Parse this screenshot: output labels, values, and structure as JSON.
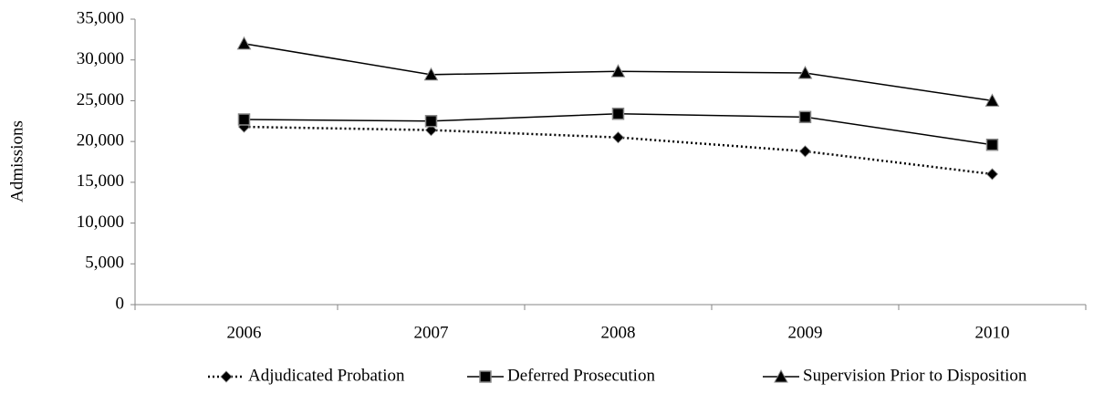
{
  "chart_data": {
    "type": "line",
    "y_label": "Admissions",
    "categories": [
      "2006",
      "2007",
      "2008",
      "2009",
      "2010"
    ],
    "series": [
      {
        "name": "Adjudicated Probation",
        "color": "#000000",
        "line_style": "dotted",
        "marker": "diamond",
        "values": [
          21800,
          21400,
          20500,
          18800,
          16000
        ]
      },
      {
        "name": "Deferred Prosecution",
        "color": "#000000",
        "line_style": "solid",
        "marker": "square",
        "values": [
          22700,
          22500,
          23400,
          23000,
          19600
        ]
      },
      {
        "name": "Supervision Prior to Disposition",
        "color": "#000000",
        "line_style": "solid",
        "marker": "triangle",
        "values": [
          32000,
          28200,
          28600,
          28400,
          25000
        ]
      }
    ],
    "ylim": [
      0,
      35000
    ],
    "yticks": [
      0,
      {
        "value": 5000,
        "label": "5,000"
      },
      {
        "value": 10000,
        "label": "10,000"
      },
      {
        "value": 15000,
        "label": "15,000"
      },
      {
        "value": 20000,
        "label": "20,000"
      },
      {
        "value": 25000,
        "label": "25,000"
      },
      {
        "value": 30000,
        "label": "30,000"
      },
      {
        "value": 35000,
        "label": "35,000"
      }
    ],
    "grid": false,
    "legend": "bottom"
  }
}
